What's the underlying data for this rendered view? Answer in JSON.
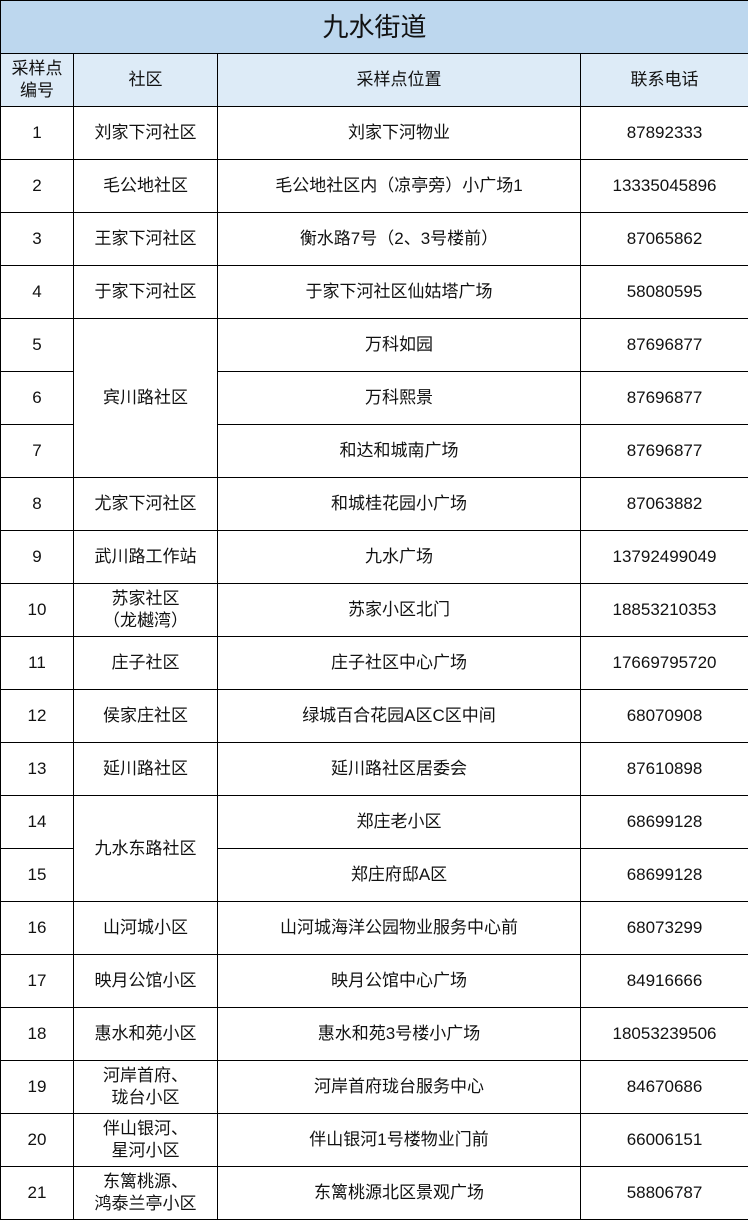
{
  "title": "九水街道",
  "headers": [
    "采样点\n编号",
    "社区",
    "采样点位置",
    "联系电话"
  ],
  "colors": {
    "title_bg": "#bdd7ee",
    "header_bg": "#ddebf7",
    "border": "#000000"
  },
  "rows": [
    {
      "no": "1",
      "community": "刘家下河社区",
      "location": "刘家下河物业",
      "phone": "87892333"
    },
    {
      "no": "2",
      "community": "毛公地社区",
      "location": "毛公地社区内（凉亭旁）小广场1",
      "phone": "13335045896"
    },
    {
      "no": "3",
      "community": "王家下河社区",
      "location": "衡水路7号（2、3号楼前）",
      "phone": "87065862"
    },
    {
      "no": "4",
      "community": "于家下河社区",
      "location": "于家下河社区仙姑塔广场",
      "phone": "58080595"
    },
    {
      "no": "5",
      "community": "宾川路社区",
      "location": "万科如园",
      "phone": "87696877"
    },
    {
      "no": "6",
      "community": "宾川路社区",
      "location": "万科熙景",
      "phone": "87696877"
    },
    {
      "no": "7",
      "community": "宾川路社区",
      "location": "和达和城南广场",
      "phone": "87696877"
    },
    {
      "no": "8",
      "community": "尤家下河社区",
      "location": "和城桂花园小广场",
      "phone": "87063882"
    },
    {
      "no": "9",
      "community": "武川路工作站",
      "location": "九水广场",
      "phone": "13792499049"
    },
    {
      "no": "10",
      "community": "苏家社区\n（龙樾湾）",
      "location": "苏家小区北门",
      "phone": "18853210353"
    },
    {
      "no": "11",
      "community": "庄子社区",
      "location": "庄子社区中心广场",
      "phone": "17669795720"
    },
    {
      "no": "12",
      "community": "侯家庄社区",
      "location": "绿城百合花园A区C区中间",
      "phone": "68070908"
    },
    {
      "no": "13",
      "community": "延川路社区",
      "location": "延川路社区居委会",
      "phone": "87610898"
    },
    {
      "no": "14",
      "community": "九水东路社区",
      "location": "郑庄老小区",
      "phone": "68699128"
    },
    {
      "no": "15",
      "community": "九水东路社区",
      "location": "郑庄府邸A区",
      "phone": "68699128"
    },
    {
      "no": "16",
      "community": "山河城小区",
      "location": "山河城海洋公园物业服务中心前",
      "phone": "68073299"
    },
    {
      "no": "17",
      "community": "映月公馆小区",
      "location": "映月公馆中心广场",
      "phone": "84916666"
    },
    {
      "no": "18",
      "community": "惠水和苑小区",
      "location": "惠水和苑3号楼小广场",
      "phone": "18053239506"
    },
    {
      "no": "19",
      "community": "河岸首府、\n珑台小区",
      "location": "河岸首府珑台服务中心",
      "phone": "84670686"
    },
    {
      "no": "20",
      "community": "伴山银河、\n星河小区",
      "location": "伴山银河1号楼物业门前",
      "phone": "66006151"
    },
    {
      "no": "21",
      "community": "东篱桃源、\n鸿泰兰亭小区",
      "location": "东篱桃源北区景观广场",
      "phone": "58806787"
    }
  ]
}
